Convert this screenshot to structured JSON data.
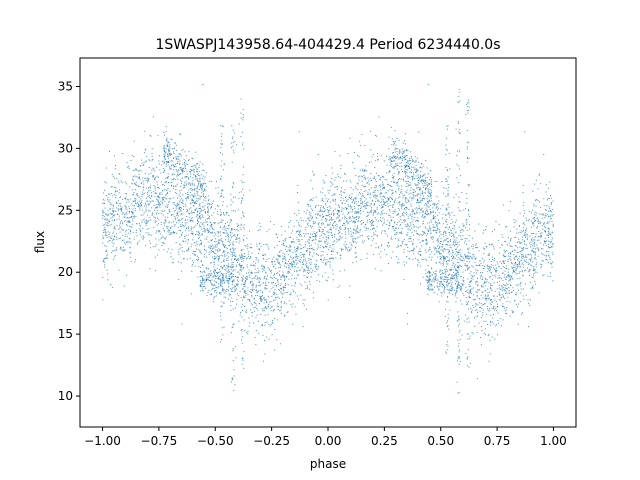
{
  "chart_data": {
    "type": "scatter",
    "title": "1SWASPJ143958.64-404429.4 Period 6234440.0s",
    "xlabel": "phase",
    "ylabel": "flux",
    "xlim": [
      -1.1,
      1.1
    ],
    "ylim": [
      7.5,
      37.3
    ],
    "xticks": [
      -1.0,
      -0.75,
      -0.5,
      -0.25,
      0.0,
      0.25,
      0.5,
      0.75,
      1.0
    ],
    "xtick_labels": [
      "−1.00",
      "−0.75",
      "−0.50",
      "−0.25",
      "0.00",
      "0.25",
      "0.50",
      "0.75",
      "1.00"
    ],
    "yticks": [
      10,
      15,
      20,
      25,
      30,
      35
    ],
    "ytick_labels": [
      "10",
      "15",
      "20",
      "25",
      "30",
      "35"
    ],
    "grid": false,
    "marker_color": "#1f77b4",
    "phase_range": [
      -1.0,
      1.0
    ],
    "mean_flux_profile": {
      "phase": [
        0.0,
        0.05,
        0.1,
        0.15,
        0.2,
        0.25,
        0.3,
        0.35,
        0.4,
        0.45,
        0.5,
        0.55,
        0.6,
        0.65,
        0.7,
        0.75,
        0.8,
        0.85,
        0.9,
        0.95,
        1.0
      ],
      "flux": [
        23.5,
        24.0,
        24.8,
        25.5,
        26.0,
        25.6,
        25.0,
        24.8,
        24.5,
        23.8,
        22.5,
        21.5,
        21.0,
        19.5,
        18.5,
        19.0,
        20.0,
        21.0,
        22.0,
        22.8,
        23.5
      ]
    },
    "scatter_sd": 2.0,
    "point_count_per_cycle": 2600,
    "features": {
      "upper_branch": {
        "phase_start": 0.27,
        "phase_end": 0.46,
        "flux_start": 30.0,
        "flux_end": 26.5
      },
      "lower_branch": {
        "phase_start": 0.43,
        "phase_end": 0.58,
        "flux": 19.3
      },
      "spike_columns": [
        {
          "phase": 0.58,
          "flux_min": 10.0,
          "flux_max": 35.5
        },
        {
          "phase": 0.62,
          "flux_min": 12.0,
          "flux_max": 34.0
        },
        {
          "phase": 0.53,
          "flux_min": 13.0,
          "flux_max": 32.0
        }
      ]
    }
  }
}
